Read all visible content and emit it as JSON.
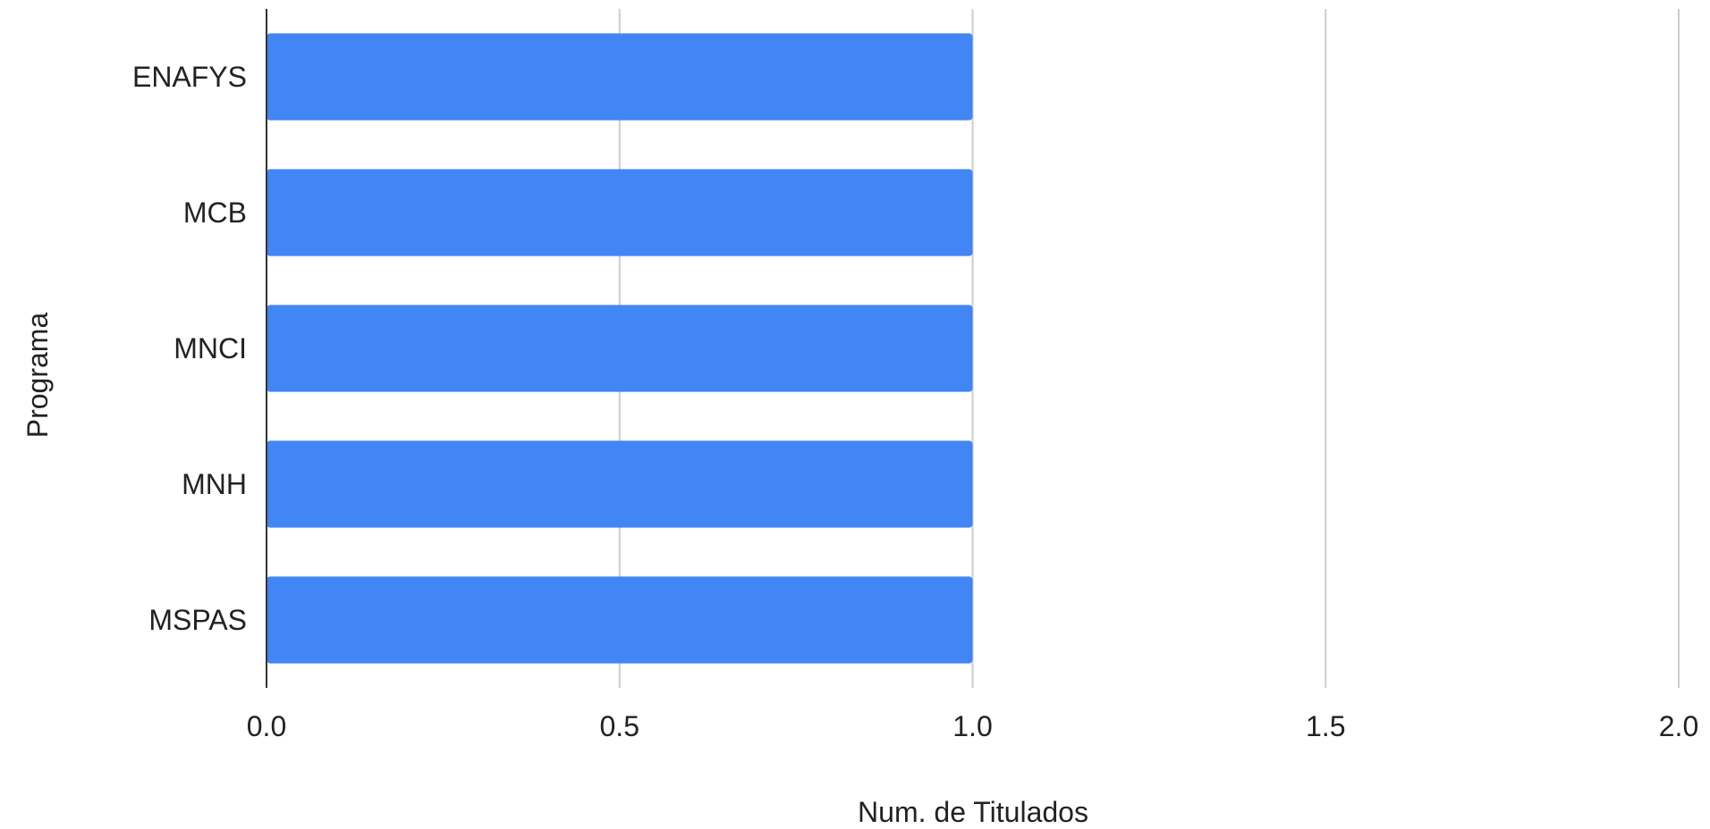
{
  "chart_data": {
    "type": "bar",
    "orientation": "horizontal",
    "categories": [
      "ENAFYS",
      "MCB",
      "MNCI",
      "MNH",
      "MSPAS"
    ],
    "series": [
      {
        "values": [
          1,
          1,
          1,
          1,
          1
        ]
      }
    ],
    "xlabel": "Num. de Titulados",
    "ylabel": "Programa",
    "xlim": [
      0,
      2
    ],
    "x_ticks": [
      "0.0",
      "0.5",
      "1.0",
      "1.5",
      "2.0"
    ],
    "grid": "vertical",
    "legend": "none",
    "colors": {
      "bar": "#4285f4",
      "grid": "#cccccc",
      "axis": "#333333"
    }
  }
}
